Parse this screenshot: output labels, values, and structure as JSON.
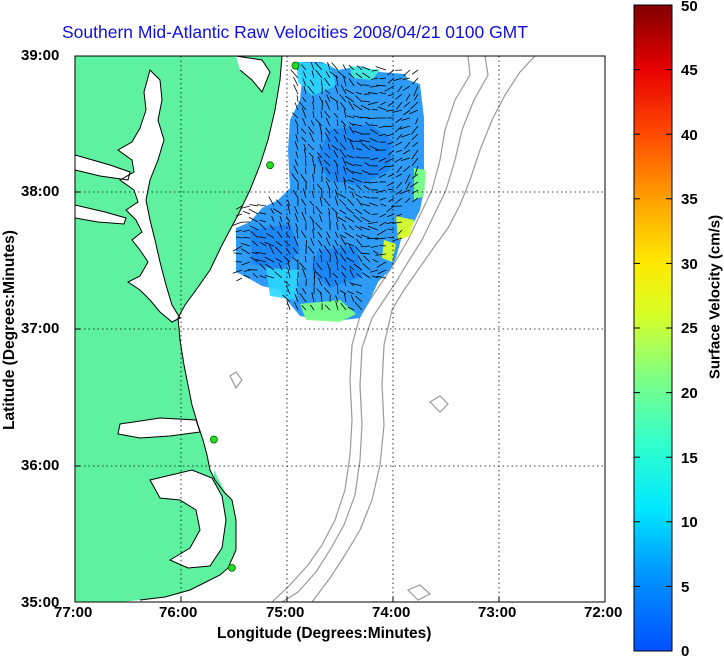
{
  "title": "Southern Mid-Atlantic Raw Velocities 2008/04/21 0100 GMT",
  "map": {
    "xlabel": "Longitude (Degrees:Minutes)",
    "ylabel": "Latitude (Degrees:Minutes)",
    "lon_range": [
      -77,
      -72
    ],
    "lat_range": [
      35,
      39
    ],
    "lon_ticks": [
      "77:00",
      "76:00",
      "75:00",
      "74:00",
      "73:00",
      "72:00"
    ],
    "lat_ticks": [
      "39:00",
      "38:00",
      "37:00",
      "36:00",
      "35:00"
    ],
    "grid": "dotted",
    "colors": {
      "land": "#5ef2a0",
      "water": "#ffffff",
      "bathymetry": "#9a9a9a",
      "station": "#22dd22"
    }
  },
  "colorbar": {
    "label": "Surface Velocity (cm/s)",
    "range": [
      0,
      50
    ],
    "ticks": [
      "0",
      "5",
      "10",
      "15",
      "20",
      "25",
      "30",
      "35",
      "40",
      "45",
      "50"
    ],
    "colormap": "jet"
  },
  "chart_data": {
    "type": "heatmap",
    "title": "Southern Mid-Atlantic Raw Velocities 2008/04/21 0100 GMT",
    "xlabel": "Longitude (Degrees:Minutes)",
    "ylabel": "Latitude (Degrees:Minutes)",
    "xlim": [
      -77,
      -72
    ],
    "ylim": [
      35,
      39
    ],
    "colorbar_label": "Surface Velocity (cm/s)",
    "colorbar_range": [
      0,
      50
    ],
    "stations": [
      {
        "lon": -74.92,
        "lat": 38.93
      },
      {
        "lon": -75.16,
        "lat": 38.2
      },
      {
        "lon": -75.69,
        "lat": 36.19
      },
      {
        "lon": -75.52,
        "lat": 35.25
      }
    ]
  }
}
